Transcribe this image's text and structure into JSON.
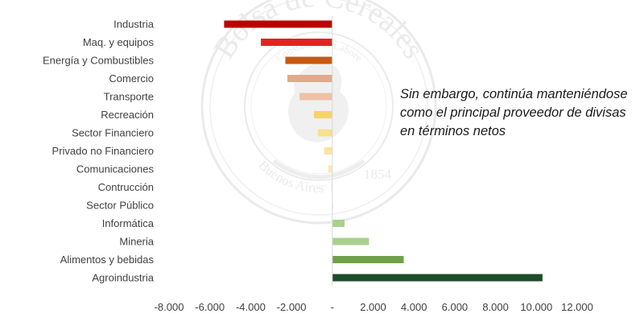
{
  "chart_data": {
    "type": "bar",
    "orientation": "horizontal",
    "categories": [
      "Industria",
      "Maq. y equipos",
      "Energía y Combustibles",
      "Comercio",
      "Transporte",
      "Recreación",
      "Sector Financiero",
      "Privado no Financiero",
      "Comunicaciones",
      "Contrucción",
      "Sector Público",
      "Informática",
      "Mineria",
      "Alimentos y bebidas",
      "Agroindustria"
    ],
    "values": [
      -5300,
      -3500,
      -2300,
      -2200,
      -1600,
      -900,
      -700,
      -400,
      -200,
      -60,
      60,
      600,
      1800,
      3500,
      10300
    ],
    "colors": [
      "#c00000",
      "#e32222",
      "#c55a11",
      "#e2a98a",
      "#f0c1a6",
      "#f6d36a",
      "#f9df8e",
      "#fbe49d",
      "#fbe9b2",
      "#f3f1dc",
      "#eef3e2",
      "#a9d08e",
      "#a9d08e",
      "#70a04a",
      "#1e4d2b"
    ],
    "xlim": [
      -8000,
      12000
    ],
    "xticks": [
      -8000,
      -6000,
      -4000,
      -2000,
      0,
      2000,
      4000,
      6000,
      8000,
      10000,
      12000
    ],
    "xtick_labels": [
      "-8.000",
      "-6.000",
      "-4.000",
      "-2.000",
      "-",
      "2.000",
      "4.000",
      "6.000",
      "8.000",
      "10.000",
      "12.000"
    ],
    "grid": false,
    "title": "",
    "xlabel": "",
    "ylabel": ""
  },
  "annotation": "Sin embargo, continúa manteniéndose como el principal proveedor de divisas en términos netos",
  "watermark": {
    "outer_text": "Bolsa de Cereales",
    "inner_text": "Constantia et Labore",
    "bottom_text": "Buenos Aires",
    "year": "1854"
  }
}
